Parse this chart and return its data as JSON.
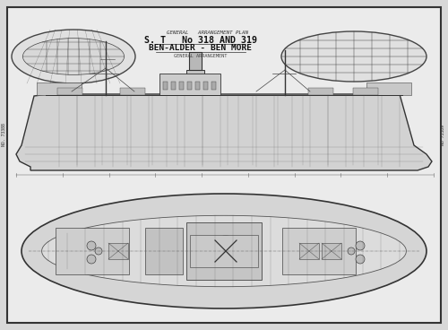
{
  "background_color": "#d8d8d8",
  "border_color": "#333333",
  "title_line1": "GENERAL   ARRANGEMENT PLAN",
  "title_line2": "S. T   No 318 AND 319",
  "title_line3": "BEN-ALDER - BEN MORE",
  "title_line4": "GENERAL ARRANGEMENT",
  "left_text": "NO. 73388",
  "right_text": "No 73389",
  "drawing_bg": "#ebebeb",
  "line_color": "#444444",
  "dark_line": "#222222",
  "figsize": [
    5.0,
    3.68
  ],
  "dpi": 100
}
